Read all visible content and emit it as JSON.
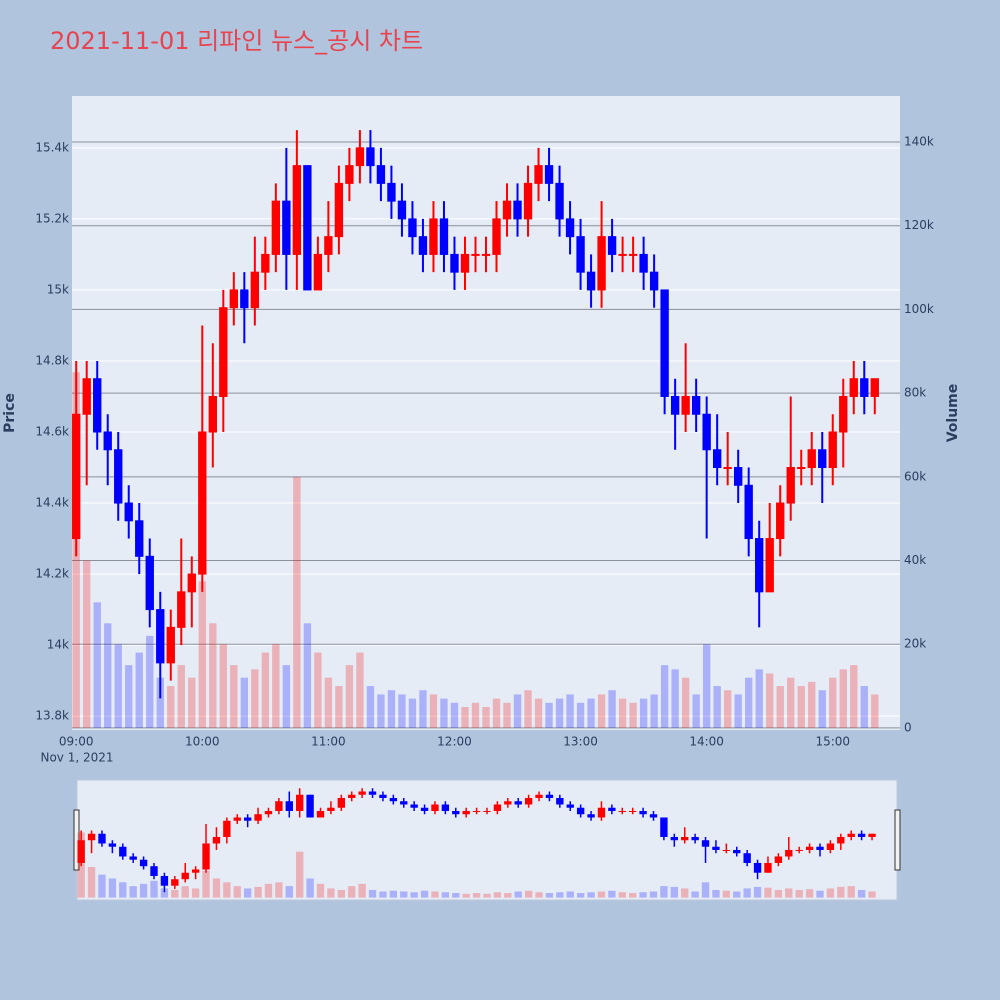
{
  "chart_data": {
    "type": "candlestick",
    "title": "2021-11-01 리파인 뉴스_공시 차트",
    "y_label": "Price",
    "y2_label": "Volume",
    "x_date_label": "Nov 1, 2021",
    "increasing_color": "#ff0000",
    "decreasing_color": "#0000ff",
    "grid": true,
    "x": [
      "2021-11-01 09:00",
      "2021-11-01 09:05",
      "2021-11-01 09:10",
      "2021-11-01 09:15",
      "2021-11-01 09:20",
      "2021-11-01 09:25",
      "2021-11-01 09:30",
      "2021-11-01 09:35",
      "2021-11-01 09:40",
      "2021-11-01 09:45",
      "2021-11-01 09:50",
      "2021-11-01 09:55",
      "2021-11-01 10:00",
      "2021-11-01 10:05",
      "2021-11-01 10:10",
      "2021-11-01 10:15",
      "2021-11-01 10:20",
      "2021-11-01 10:25",
      "2021-11-01 10:30",
      "2021-11-01 10:35",
      "2021-11-01 10:40",
      "2021-11-01 10:45",
      "2021-11-01 10:50",
      "2021-11-01 10:55",
      "2021-11-01 11:00",
      "2021-11-01 11:05",
      "2021-11-01 11:10",
      "2021-11-01 11:15",
      "2021-11-01 11:20",
      "2021-11-01 11:25",
      "2021-11-01 11:30",
      "2021-11-01 11:35",
      "2021-11-01 11:40",
      "2021-11-01 11:45",
      "2021-11-01 11:50",
      "2021-11-01 11:55",
      "2021-11-01 12:00",
      "2021-11-01 12:05",
      "2021-11-01 12:10",
      "2021-11-01 12:15",
      "2021-11-01 12:20",
      "2021-11-01 12:25",
      "2021-11-01 12:30",
      "2021-11-01 12:35",
      "2021-11-01 12:40",
      "2021-11-01 12:45",
      "2021-11-01 12:50",
      "2021-11-01 12:55",
      "2021-11-01 13:00",
      "2021-11-01 13:05",
      "2021-11-01 13:10",
      "2021-11-01 13:15",
      "2021-11-01 13:20",
      "2021-11-01 13:25",
      "2021-11-01 13:30",
      "2021-11-01 13:35",
      "2021-11-01 13:40",
      "2021-11-01 13:45",
      "2021-11-01 13:50",
      "2021-11-01 13:55",
      "2021-11-01 14:00",
      "2021-11-01 14:05",
      "2021-11-01 14:10",
      "2021-11-01 14:15",
      "2021-11-01 14:20",
      "2021-11-01 14:25",
      "2021-11-01 14:30",
      "2021-11-01 14:35",
      "2021-11-01 14:40",
      "2021-11-01 14:45",
      "2021-11-01 14:50",
      "2021-11-01 14:55",
      "2021-11-01 15:00",
      "2021-11-01 15:05",
      "2021-11-01 15:10",
      "2021-11-01 15:15",
      "2021-11-01 15:20"
    ],
    "open": [
      14300,
      14650,
      14750,
      14600,
      14550,
      14400,
      14350,
      14250,
      14100,
      13950,
      14050,
      14150,
      14200,
      14600,
      14700,
      14950,
      15000,
      14950,
      15050,
      15100,
      15250,
      15100,
      15350,
      15000,
      15100,
      15150,
      15300,
      15350,
      15400,
      15350,
      15300,
      15250,
      15200,
      15150,
      15100,
      15200,
      15100,
      15050,
      15100,
      15100,
      15100,
      15200,
      15250,
      15200,
      15300,
      15350,
      15300,
      15200,
      15150,
      15050,
      15000,
      15150,
      15100,
      15100,
      15100,
      15050,
      15000,
      14700,
      14650,
      14700,
      14650,
      14550,
      14500,
      14500,
      14450,
      14300,
      14150,
      14300,
      14400,
      14500,
      14500,
      14550,
      14500,
      14600,
      14700,
      14750,
      14700
    ],
    "high": [
      14800,
      14800,
      14800,
      14650,
      14600,
      14450,
      14400,
      14300,
      14150,
      14100,
      14300,
      14250,
      14900,
      14850,
      15000,
      15050,
      15050,
      15150,
      15150,
      15300,
      15400,
      15450,
      15350,
      15150,
      15250,
      15350,
      15400,
      15450,
      15450,
      15400,
      15350,
      15300,
      15250,
      15200,
      15250,
      15250,
      15150,
      15150,
      15150,
      15150,
      15250,
      15300,
      15300,
      15350,
      15400,
      15400,
      15350,
      15250,
      15200,
      15100,
      15250,
      15200,
      15150,
      15150,
      15150,
      15100,
      15000,
      14750,
      14850,
      14750,
      14700,
      14650,
      14600,
      14550,
      14500,
      14350,
      14400,
      14450,
      14700,
      14550,
      14600,
      14600,
      14650,
      14750,
      14800,
      14800,
      14750
    ],
    "low": [
      14250,
      14450,
      14550,
      14450,
      14350,
      14300,
      14200,
      14050,
      13850,
      13900,
      14000,
      14050,
      14150,
      14500,
      14600,
      14900,
      14850,
      14900,
      15000,
      15050,
      15000,
      15000,
      15000,
      15000,
      15050,
      15100,
      15250,
      15300,
      15300,
      15250,
      15200,
      15150,
      15100,
      15050,
      15050,
      15050,
      15000,
      15000,
      15050,
      15050,
      15050,
      15150,
      15150,
      15150,
      15250,
      15250,
      15150,
      15100,
      15000,
      14950,
      14950,
      15050,
      15050,
      15050,
      15000,
      14950,
      14650,
      14550,
      14600,
      14600,
      14300,
      14450,
      14450,
      14400,
      14250,
      14050,
      14150,
      14250,
      14350,
      14450,
      14450,
      14400,
      14450,
      14500,
      14650,
      14650,
      14650
    ],
    "close": [
      14650,
      14750,
      14600,
      14550,
      14400,
      14350,
      14250,
      14100,
      13950,
      14050,
      14150,
      14200,
      14600,
      14700,
      14950,
      15000,
      14950,
      15050,
      15100,
      15250,
      15100,
      15350,
      15000,
      15100,
      15150,
      15300,
      15350,
      15400,
      15350,
      15300,
      15250,
      15200,
      15150,
      15100,
      15200,
      15100,
      15050,
      15100,
      15100,
      15100,
      15200,
      15250,
      15200,
      15300,
      15350,
      15300,
      15200,
      15150,
      15050,
      15000,
      15150,
      15100,
      15100,
      15100,
      15050,
      15000,
      14700,
      14650,
      14700,
      14650,
      14550,
      14500,
      14500,
      14450,
      14300,
      14150,
      14300,
      14400,
      14500,
      14500,
      14550,
      14500,
      14600,
      14700,
      14750,
      14700,
      14750
    ],
    "volume": [
      85000,
      40000,
      30000,
      25000,
      20000,
      15000,
      18000,
      22000,
      12000,
      10000,
      15000,
      12000,
      35000,
      25000,
      20000,
      15000,
      12000,
      14000,
      18000,
      20000,
      15000,
      60000,
      25000,
      18000,
      12000,
      10000,
      15000,
      18000,
      10000,
      8000,
      9000,
      8000,
      7000,
      9000,
      8000,
      7000,
      6000,
      5000,
      6000,
      5000,
      7000,
      6000,
      8000,
      9000,
      7000,
      6000,
      7000,
      8000,
      6000,
      7000,
      8000,
      9000,
      7000,
      6000,
      7000,
      8000,
      15000,
      14000,
      12000,
      8000,
      20000,
      10000,
      9000,
      8000,
      12000,
      14000,
      13000,
      10000,
      12000,
      10000,
      11000,
      9000,
      12000,
      14000,
      15000,
      10000,
      8000
    ],
    "xlim": [
      "2021-11-01 08:58",
      "2021-11-01 15:32"
    ],
    "xticks": [
      {
        "value": "2021-11-01 09:00",
        "label": "09:00"
      },
      {
        "value": "2021-11-01 10:00",
        "label": "10:00"
      },
      {
        "value": "2021-11-01 11:00",
        "label": "11:00"
      },
      {
        "value": "2021-11-01 12:00",
        "label": "12:00"
      },
      {
        "value": "2021-11-01 13:00",
        "label": "13:00"
      },
      {
        "value": "2021-11-01 14:00",
        "label": "14:00"
      },
      {
        "value": "2021-11-01 15:00",
        "label": "15:00"
      }
    ],
    "ylim": [
      13761,
      15546
    ],
    "yticks": [
      {
        "value": 13800,
        "label": "13.8k"
      },
      {
        "value": 14000,
        "label": "14k"
      },
      {
        "value": 14200,
        "label": "14.2k"
      },
      {
        "value": 14400,
        "label": "14.4k"
      },
      {
        "value": 14600,
        "label": "14.6k"
      },
      {
        "value": 14800,
        "label": "14.8k"
      },
      {
        "value": 15000,
        "label": "15k"
      },
      {
        "value": 15200,
        "label": "15.2k"
      },
      {
        "value": 15400,
        "label": "15.4k"
      }
    ],
    "y2lim": [
      -500,
      151000
    ],
    "y2ticks": [
      0,
      {
        "value": 20000,
        "label": "20k"
      },
      {
        "value": 40000,
        "label": "40k"
      },
      {
        "value": 60000,
        "label": "60k"
      },
      {
        "value": 80000,
        "label": "80k"
      },
      {
        "value": 100000,
        "label": "100k"
      },
      {
        "value": 120000,
        "label": "120k"
      },
      {
        "value": 140000,
        "label": "140k"
      }
    ]
  }
}
